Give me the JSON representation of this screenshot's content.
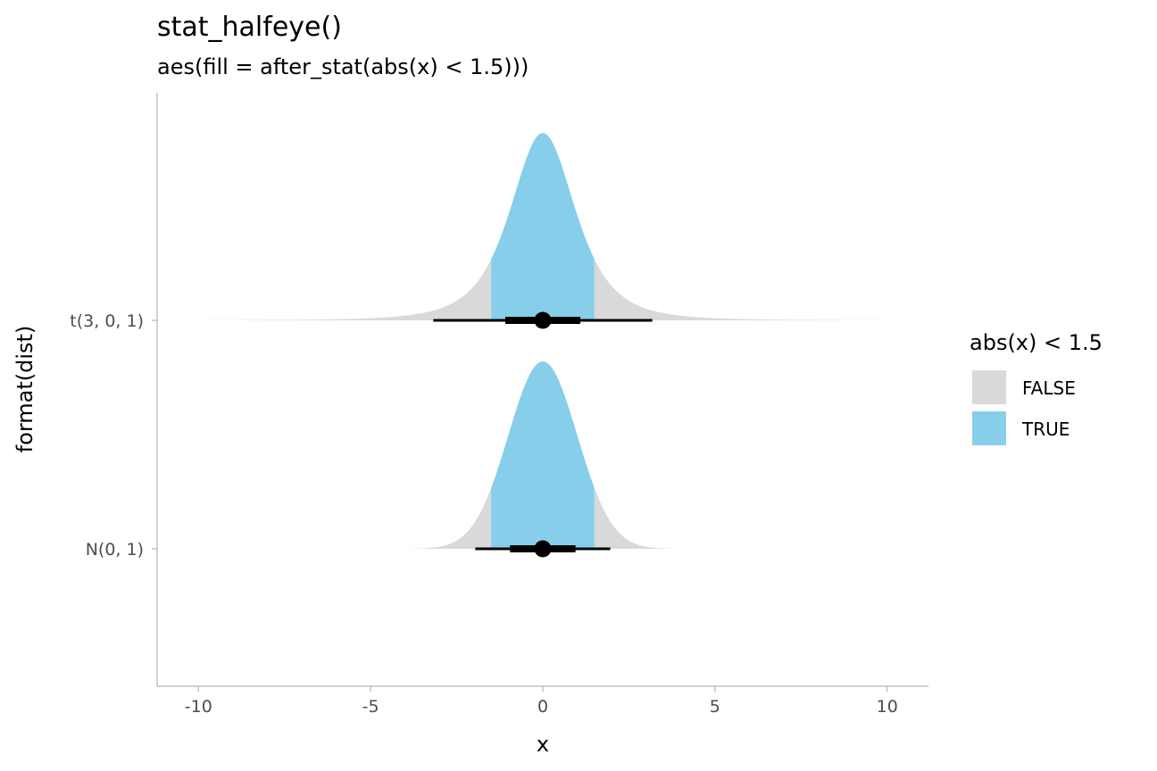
{
  "chart_data": {
    "type": "halfeye",
    "title": "stat_halfeye()",
    "subtitle": "aes(fill = after_stat(abs(x) < 1.5)))",
    "xlabel": "x",
    "ylabel": "format(dist)",
    "xlim": [
      -11.2,
      11.2
    ],
    "x_ticks": [
      -10,
      -5,
      0,
      5,
      10
    ],
    "x_tick_labels": [
      "-10",
      "-5",
      "0",
      "5",
      "10"
    ],
    "categories": [
      "N(0, 1)",
      "t(3, 0, 1)"
    ],
    "series": [
      {
        "category": "N(0, 1)",
        "distribution": "normal",
        "df": null,
        "density_range": [
          -4.1,
          4.1
        ],
        "point": 0,
        "interval_66": [
          -0.95,
          0.95
        ],
        "interval_95": [
          -1.96,
          1.96
        ]
      },
      {
        "category": "t(3, 0, 1)",
        "distribution": "student_t",
        "df": 3,
        "density_range": [
          -10.2,
          10.2
        ],
        "point": 0,
        "interval_66": [
          -1.09,
          1.09
        ],
        "interval_95": [
          -3.18,
          3.18
        ]
      }
    ],
    "fill_rule": {
      "threshold": 1.5
    },
    "legend": {
      "title": "abs(x) < 1.5",
      "placement": "right",
      "entries": [
        {
          "label": "FALSE",
          "color": "#d9d9d9"
        },
        {
          "label": "TRUE",
          "color": "#87ceea"
        }
      ]
    },
    "colors": {
      "false_fill": "#d9d9d9",
      "true_fill": "#87ceea",
      "interval": "#000000",
      "axis": "#b3b3b3"
    },
    "grid": false
  }
}
